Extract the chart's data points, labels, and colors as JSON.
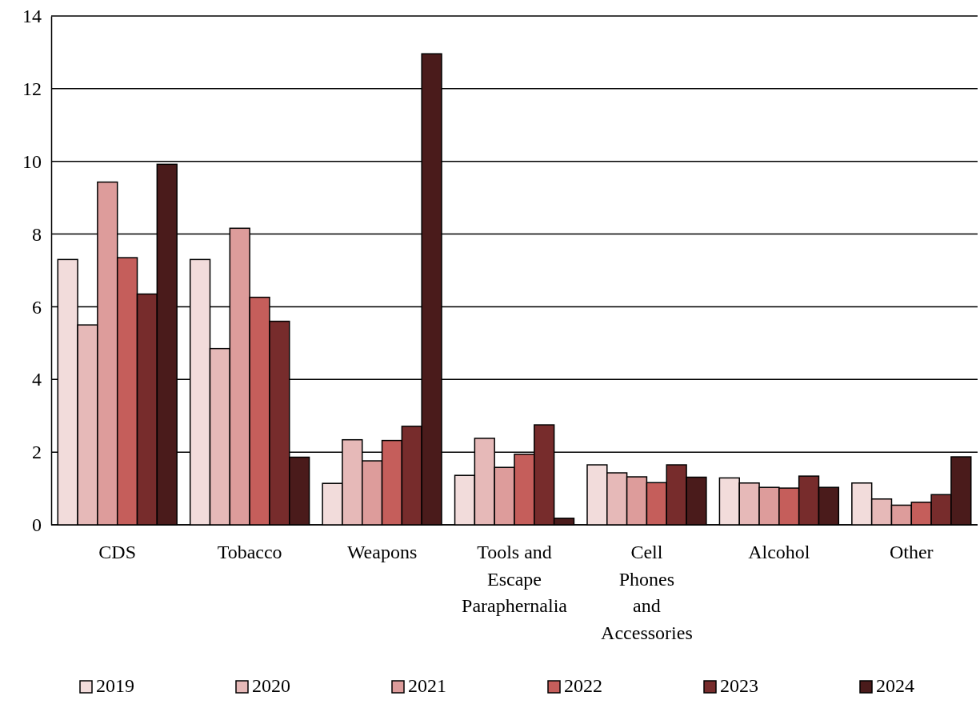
{
  "chart_data": {
    "type": "bar",
    "categories": [
      "CDS",
      "Tobacco",
      "Weapons",
      "Tools and Escape Paraphernalia",
      "Cell Phones and Accessories",
      "Alcohol",
      "Other"
    ],
    "series": [
      {
        "name": "2019",
        "color": "#f2dcdb",
        "values": [
          7.3,
          7.3,
          1.14,
          1.36,
          1.65,
          1.29,
          1.15
        ]
      },
      {
        "name": "2020",
        "color": "#e6b9b8",
        "values": [
          5.5,
          4.85,
          2.34,
          2.38,
          1.43,
          1.15,
          0.71
        ]
      },
      {
        "name": "2021",
        "color": "#dd9c9b",
        "values": [
          9.43,
          8.16,
          1.76,
          1.58,
          1.32,
          1.03,
          0.54
        ]
      },
      {
        "name": "2022",
        "color": "#c55e5b",
        "values": [
          7.35,
          6.26,
          2.32,
          1.94,
          1.16,
          1.01,
          0.62
        ]
      },
      {
        "name": "2023",
        "color": "#772c2c",
        "values": [
          6.35,
          5.6,
          2.71,
          2.75,
          1.65,
          1.34,
          0.83
        ]
      },
      {
        "name": "2024",
        "color": "#4a1b1b",
        "values": [
          9.92,
          1.86,
          12.96,
          0.18,
          1.31,
          1.03,
          1.87
        ]
      }
    ],
    "ylim": [
      0,
      14
    ],
    "yticks": [
      0,
      2,
      4,
      6,
      8,
      10,
      12,
      14
    ],
    "grid": "y",
    "legend": "bottom"
  }
}
